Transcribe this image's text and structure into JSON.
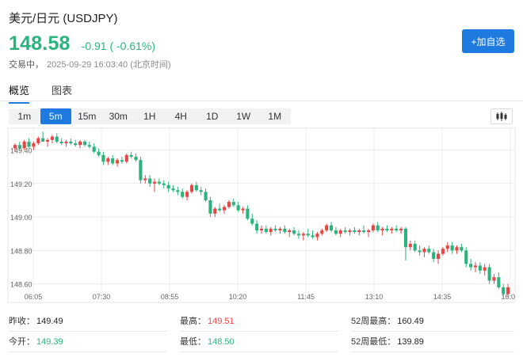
{
  "header": {
    "title": "美元/日元 (USDJPY)",
    "price": "148.58",
    "change": "-0.91 ( -0.61%)",
    "status": "交易中，",
    "timestamp": "2025-09-29 16:03:40 (北京时间)",
    "watch_label": "+加自选"
  },
  "tabs": [
    {
      "label": "概览",
      "active": true
    },
    {
      "label": "图表",
      "active": false
    }
  ],
  "periods": [
    {
      "label": "1m",
      "active": false
    },
    {
      "label": "5m",
      "active": true
    },
    {
      "label": "15m",
      "active": false
    },
    {
      "label": "30m",
      "active": false
    },
    {
      "label": "1H",
      "active": false
    },
    {
      "label": "4H",
      "active": false
    },
    {
      "label": "1D",
      "active": false
    },
    {
      "label": "1W",
      "active": false
    },
    {
      "label": "1M",
      "active": false
    }
  ],
  "colors": {
    "up": "#e84545",
    "down": "#2cb37b",
    "accent": "#1f7ae0"
  },
  "stats": [
    {
      "label": "昨收：",
      "value": "149.49",
      "tone": "dark"
    },
    {
      "label": "最高：",
      "value": "149.51",
      "tone": "red"
    },
    {
      "label": "52周最高：",
      "value": "160.49",
      "tone": "dark"
    },
    {
      "label": "今开：",
      "value": "149.39",
      "tone": "green"
    },
    {
      "label": "最低：",
      "value": "148.50",
      "tone": "green"
    },
    {
      "label": "52周最低：",
      "value": "139.89",
      "tone": "dark"
    }
  ],
  "chart_data": {
    "type": "candlestick",
    "y_ticks": [
      "149.40",
      "149.20",
      "149.00",
      "148.80",
      "148.60"
    ],
    "x_ticks": [
      "06:05",
      "07:30",
      "08:55",
      "10:20",
      "11:45",
      "13:10",
      "14:35",
      "16:0"
    ],
    "ylim": [
      148.49,
      149.53
    ],
    "grid": true,
    "candles": [
      [
        149.41,
        149.44,
        149.39,
        149.43
      ],
      [
        149.43,
        149.45,
        149.4,
        149.41
      ],
      [
        149.41,
        149.46,
        149.4,
        149.45
      ],
      [
        149.45,
        149.47,
        149.41,
        149.42
      ],
      [
        149.42,
        149.45,
        149.4,
        149.44
      ],
      [
        149.44,
        149.48,
        149.43,
        149.47
      ],
      [
        149.47,
        149.51,
        149.45,
        149.45
      ],
      [
        149.45,
        149.47,
        149.42,
        149.46
      ],
      [
        149.46,
        149.49,
        149.44,
        149.48
      ],
      [
        149.48,
        149.5,
        149.44,
        149.45
      ],
      [
        149.45,
        149.47,
        149.43,
        149.44
      ],
      [
        149.44,
        149.46,
        149.42,
        149.45
      ],
      [
        149.45,
        149.47,
        149.43,
        149.44
      ],
      [
        149.44,
        149.46,
        149.42,
        149.43
      ],
      [
        149.43,
        149.46,
        149.41,
        149.45
      ],
      [
        149.45,
        149.46,
        149.42,
        149.43
      ],
      [
        149.43,
        149.45,
        149.41,
        149.42
      ],
      [
        149.42,
        149.44,
        149.38,
        149.39
      ],
      [
        149.39,
        149.41,
        149.36,
        149.37
      ],
      [
        149.37,
        149.39,
        149.31,
        149.33
      ],
      [
        149.33,
        149.36,
        149.31,
        149.35
      ],
      [
        149.35,
        149.37,
        149.31,
        149.32
      ],
      [
        149.32,
        149.35,
        149.3,
        149.34
      ],
      [
        149.34,
        149.36,
        149.32,
        149.33
      ],
      [
        149.33,
        149.38,
        149.32,
        149.37
      ],
      [
        149.37,
        149.39,
        149.35,
        149.36
      ],
      [
        149.36,
        149.38,
        149.33,
        149.34
      ],
      [
        149.34,
        149.36,
        149.2,
        149.22
      ],
      [
        149.22,
        149.25,
        149.2,
        149.23
      ],
      [
        149.23,
        149.25,
        149.18,
        149.2
      ],
      [
        149.2,
        149.23,
        149.15,
        149.21
      ],
      [
        149.21,
        149.23,
        149.19,
        149.2
      ],
      [
        149.2,
        149.22,
        149.17,
        149.19
      ],
      [
        149.19,
        149.21,
        149.15,
        149.17
      ],
      [
        149.17,
        149.19,
        149.15,
        149.16
      ],
      [
        149.16,
        149.18,
        149.13,
        149.15
      ],
      [
        149.15,
        149.17,
        149.11,
        149.12
      ],
      [
        149.12,
        149.16,
        149.1,
        149.15
      ],
      [
        149.15,
        149.2,
        149.14,
        149.19
      ],
      [
        149.19,
        149.21,
        149.15,
        149.16
      ],
      [
        149.16,
        149.18,
        149.13,
        149.15
      ],
      [
        149.15,
        149.17,
        149.09,
        149.1
      ],
      [
        149.1,
        149.12,
        149.0,
        149.02
      ],
      [
        149.02,
        149.06,
        149.0,
        149.05
      ],
      [
        149.05,
        149.08,
        149.03,
        149.04
      ],
      [
        149.04,
        149.07,
        149.02,
        149.06
      ],
      [
        149.06,
        149.1,
        149.05,
        149.09
      ],
      [
        149.09,
        149.11,
        149.06,
        149.07
      ],
      [
        149.07,
        149.09,
        149.03,
        149.04
      ],
      [
        149.04,
        149.06,
        149.02,
        149.05
      ],
      [
        149.05,
        149.07,
        148.98,
        148.99
      ],
      [
        148.99,
        149.02,
        148.95,
        148.96
      ],
      [
        148.96,
        148.98,
        148.9,
        148.92
      ],
      [
        148.92,
        148.95,
        148.9,
        148.93
      ],
      [
        148.93,
        148.95,
        148.9,
        148.91
      ],
      [
        148.91,
        148.94,
        148.89,
        148.93
      ],
      [
        148.93,
        148.95,
        148.91,
        148.92
      ],
      [
        148.92,
        148.94,
        148.9,
        148.93
      ],
      [
        148.93,
        148.95,
        148.9,
        148.91
      ],
      [
        148.91,
        148.93,
        148.88,
        148.92
      ],
      [
        148.92,
        148.94,
        148.89,
        148.9
      ],
      [
        148.9,
        148.92,
        148.87,
        148.89
      ],
      [
        148.89,
        148.91,
        148.86,
        148.9
      ],
      [
        148.9,
        148.93,
        148.88,
        148.89
      ],
      [
        148.89,
        148.92,
        148.87,
        148.88
      ],
      [
        148.88,
        148.91,
        148.86,
        148.9
      ],
      [
        148.9,
        148.93,
        148.89,
        148.92
      ],
      [
        148.92,
        148.96,
        148.91,
        148.95
      ],
      [
        148.95,
        148.97,
        148.91,
        148.92
      ],
      [
        148.92,
        148.94,
        148.89,
        148.9
      ],
      [
        148.9,
        148.93,
        148.88,
        148.92
      ],
      [
        148.92,
        148.94,
        148.9,
        148.91
      ],
      [
        148.91,
        148.93,
        148.89,
        148.92
      ],
      [
        148.92,
        148.94,
        148.9,
        148.91
      ],
      [
        148.91,
        148.93,
        148.89,
        148.92
      ],
      [
        148.92,
        148.95,
        148.9,
        148.91
      ],
      [
        148.91,
        148.93,
        148.88,
        148.92
      ],
      [
        148.92,
        148.96,
        148.91,
        148.95
      ],
      [
        148.95,
        148.97,
        148.91,
        148.92
      ],
      [
        148.92,
        148.94,
        148.89,
        148.93
      ],
      [
        148.93,
        148.95,
        148.91,
        148.92
      ],
      [
        148.92,
        148.94,
        148.9,
        148.93
      ],
      [
        148.93,
        148.95,
        148.91,
        148.92
      ],
      [
        148.92,
        148.94,
        148.9,
        148.93
      ],
      [
        148.93,
        148.94,
        148.74,
        148.82
      ],
      [
        148.82,
        148.86,
        148.8,
        148.84
      ],
      [
        148.84,
        148.86,
        148.79,
        148.8
      ],
      [
        148.8,
        148.83,
        148.77,
        148.79
      ],
      [
        148.79,
        148.82,
        148.76,
        148.81
      ],
      [
        148.81,
        148.83,
        148.78,
        148.79
      ],
      [
        148.79,
        148.81,
        148.73,
        148.75
      ],
      [
        148.75,
        148.8,
        148.72,
        148.78
      ],
      [
        148.78,
        148.82,
        148.77,
        148.81
      ],
      [
        148.81,
        148.85,
        148.79,
        148.83
      ],
      [
        148.83,
        148.85,
        148.78,
        148.8
      ],
      [
        148.8,
        148.83,
        148.78,
        148.82
      ],
      [
        148.82,
        148.84,
        148.79,
        148.8
      ],
      [
        148.8,
        148.82,
        148.7,
        148.72
      ],
      [
        148.72,
        148.75,
        148.68,
        148.7
      ],
      [
        148.7,
        148.73,
        148.67,
        148.71
      ],
      [
        148.71,
        148.73,
        148.66,
        148.68
      ],
      [
        148.68,
        148.72,
        148.65,
        148.7
      ],
      [
        148.7,
        148.72,
        148.6,
        148.62
      ],
      [
        148.62,
        148.66,
        148.6,
        148.64
      ],
      [
        148.64,
        148.67,
        148.57,
        148.58
      ],
      [
        148.58,
        148.6,
        148.52,
        148.54
      ],
      [
        148.54,
        148.6,
        148.52,
        148.58
      ]
    ]
  }
}
